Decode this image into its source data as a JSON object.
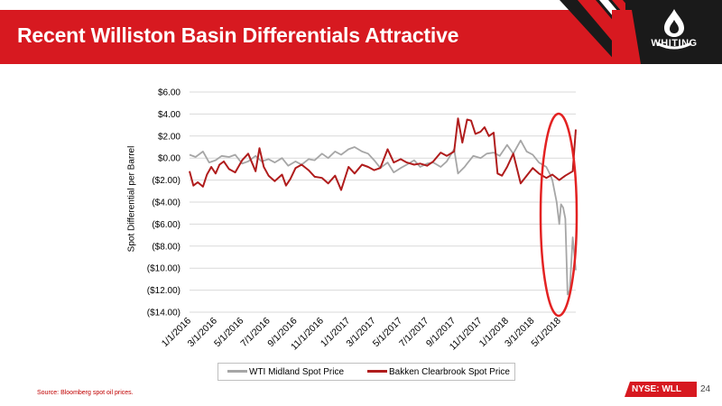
{
  "slide": {
    "title": "Recent Williston Basin Differentials Attractive",
    "logo_text": "WHITING",
    "source": "Source: Bloomberg spot oil prices.",
    "ticker": "NYSE: WLL",
    "page_number": "24"
  },
  "colors": {
    "banner_red": "#d71920",
    "wti_series": "#a6a6a6",
    "bakken_series": "#b01c1c",
    "highlight_ellipse": "#e32222",
    "grid": "#d9d9d9"
  },
  "chart_data": {
    "type": "line",
    "title": "",
    "xlabel": "",
    "ylabel": "Spot Differential per Barrel",
    "ylim": [
      -14,
      6
    ],
    "yticks": [
      6,
      4,
      2,
      0,
      -2,
      -4,
      -6,
      -8,
      -10,
      -12,
      -14
    ],
    "ytick_labels": [
      "$6.00",
      "$4.00",
      "$2.00",
      "$0.00",
      "($2.00)",
      "($4.00)",
      "($6.00)",
      "($8.00)",
      "($10.00)",
      "($12.00)",
      "($14.00)"
    ],
    "xlim": [
      "2016-01-01",
      "2018-06-08"
    ],
    "xtick_labels": [
      "1/1/2016",
      "3/1/2016",
      "5/1/2016",
      "7/1/2016",
      "9/1/2016",
      "11/1/2016",
      "1/1/2017",
      "3/1/2017",
      "5/1/2017",
      "7/1/2017",
      "9/1/2017",
      "11/1/2017",
      "1/1/2018",
      "3/1/2018",
      "5/1/2018"
    ],
    "xtick_dates": [
      "2016-01-01",
      "2016-03-01",
      "2016-05-01",
      "2016-07-01",
      "2016-09-01",
      "2016-11-01",
      "2017-01-01",
      "2017-03-01",
      "2017-05-01",
      "2017-07-01",
      "2017-09-01",
      "2017-11-01",
      "2018-01-01",
      "2018-03-01",
      "2018-05-01"
    ],
    "grid": true,
    "legend": "bottom",
    "annotation": "red ellipse around the most recent data (May–June 2018)",
    "series": [
      {
        "name": "WTI Midland Spot Price",
        "color": "#a6a6a6",
        "x": [
          "2016-01-01",
          "2016-01-15",
          "2016-02-01",
          "2016-02-15",
          "2016-03-01",
          "2016-03-15",
          "2016-04-01",
          "2016-04-15",
          "2016-05-01",
          "2016-05-15",
          "2016-06-01",
          "2016-06-15",
          "2016-07-01",
          "2016-07-15",
          "2016-08-01",
          "2016-08-15",
          "2016-09-01",
          "2016-09-15",
          "2016-10-01",
          "2016-10-15",
          "2016-11-01",
          "2016-11-15",
          "2016-12-01",
          "2016-12-15",
          "2017-01-01",
          "2017-01-15",
          "2017-02-01",
          "2017-02-15",
          "2017-03-01",
          "2017-03-15",
          "2017-04-01",
          "2017-04-15",
          "2017-05-01",
          "2017-05-15",
          "2017-06-01",
          "2017-06-15",
          "2017-07-01",
          "2017-07-15",
          "2017-08-01",
          "2017-08-15",
          "2017-09-01",
          "2017-09-10",
          "2017-09-25",
          "2017-10-01",
          "2017-10-15",
          "2017-11-01",
          "2017-11-15",
          "2017-12-01",
          "2017-12-15",
          "2018-01-01",
          "2018-01-15",
          "2018-02-01",
          "2018-02-15",
          "2018-03-01",
          "2018-03-15",
          "2018-04-01",
          "2018-04-10",
          "2018-04-15",
          "2018-04-20",
          "2018-04-25",
          "2018-05-01",
          "2018-05-05",
          "2018-05-10",
          "2018-05-15",
          "2018-05-20",
          "2018-05-25",
          "2018-06-01",
          "2018-06-08"
        ],
        "values": [
          0.3,
          0.1,
          0.6,
          -0.4,
          -0.2,
          0.2,
          0.1,
          0.3,
          -0.5,
          -0.3,
          0.2,
          -0.3,
          -0.1,
          -0.4,
          0.0,
          -0.7,
          -0.3,
          -0.6,
          -0.1,
          -0.2,
          0.4,
          0.0,
          0.6,
          0.3,
          0.8,
          1.0,
          0.6,
          0.4,
          -0.2,
          -0.9,
          -0.4,
          -1.3,
          -0.9,
          -0.6,
          -0.2,
          -0.8,
          -0.5,
          -0.4,
          -0.8,
          -0.3,
          0.8,
          -1.4,
          -0.8,
          -0.5,
          0.2,
          0.0,
          0.4,
          0.5,
          0.2,
          1.2,
          0.4,
          1.6,
          0.6,
          0.3,
          -0.4,
          -0.8,
          -1.5,
          -2.0,
          -3.0,
          -4.0,
          -6.0,
          -4.2,
          -4.5,
          -5.5,
          -12.4,
          -12.0,
          -7.2,
          -10.2
        ]
      },
      {
        "name": "Bakken Clearbrook Spot Price",
        "color": "#b01c1c",
        "x": [
          "2016-01-01",
          "2016-01-10",
          "2016-01-20",
          "2016-02-01",
          "2016-02-10",
          "2016-02-20",
          "2016-03-01",
          "2016-03-10",
          "2016-03-20",
          "2016-04-01",
          "2016-04-15",
          "2016-05-01",
          "2016-05-15",
          "2016-06-01",
          "2016-06-10",
          "2016-06-20",
          "2016-07-01",
          "2016-07-15",
          "2016-08-01",
          "2016-08-10",
          "2016-08-20",
          "2016-09-01",
          "2016-09-15",
          "2016-10-01",
          "2016-10-15",
          "2016-11-01",
          "2016-11-15",
          "2016-12-01",
          "2016-12-15",
          "2017-01-01",
          "2017-01-15",
          "2017-02-01",
          "2017-02-15",
          "2017-03-01",
          "2017-03-15",
          "2017-04-01",
          "2017-04-15",
          "2017-05-01",
          "2017-05-15",
          "2017-06-01",
          "2017-06-15",
          "2017-07-01",
          "2017-07-15",
          "2017-08-01",
          "2017-08-15",
          "2017-09-01",
          "2017-09-10",
          "2017-09-20",
          "2017-10-01",
          "2017-10-10",
          "2017-10-20",
          "2017-11-01",
          "2017-11-10",
          "2017-11-20",
          "2017-12-01",
          "2017-12-10",
          "2017-12-20",
          "2018-01-01",
          "2018-01-15",
          "2018-02-01",
          "2018-02-15",
          "2018-03-01",
          "2018-03-15",
          "2018-04-01",
          "2018-04-15",
          "2018-05-01",
          "2018-05-15",
          "2018-06-01",
          "2018-06-08"
        ],
        "values": [
          -1.2,
          -2.5,
          -2.2,
          -2.6,
          -1.5,
          -0.8,
          -1.4,
          -0.6,
          -0.3,
          -1.0,
          -1.3,
          -0.2,
          0.4,
          -1.2,
          0.9,
          -0.8,
          -1.6,
          -2.1,
          -1.5,
          -2.5,
          -1.9,
          -0.9,
          -0.6,
          -1.1,
          -1.7,
          -1.8,
          -2.3,
          -1.6,
          -2.9,
          -0.8,
          -1.4,
          -0.6,
          -0.8,
          -1.1,
          -0.9,
          0.8,
          -0.4,
          -0.1,
          -0.4,
          -0.6,
          -0.5,
          -0.7,
          -0.3,
          0.5,
          0.2,
          0.6,
          3.6,
          1.4,
          3.5,
          3.4,
          2.2,
          2.4,
          2.8,
          2.0,
          2.3,
          -1.4,
          -1.6,
          -0.8,
          0.4,
          -2.3,
          -1.6,
          -0.9,
          -1.4,
          -1.8,
          -1.5,
          -2.0,
          -1.6,
          -1.2,
          2.6
        ]
      }
    ]
  }
}
